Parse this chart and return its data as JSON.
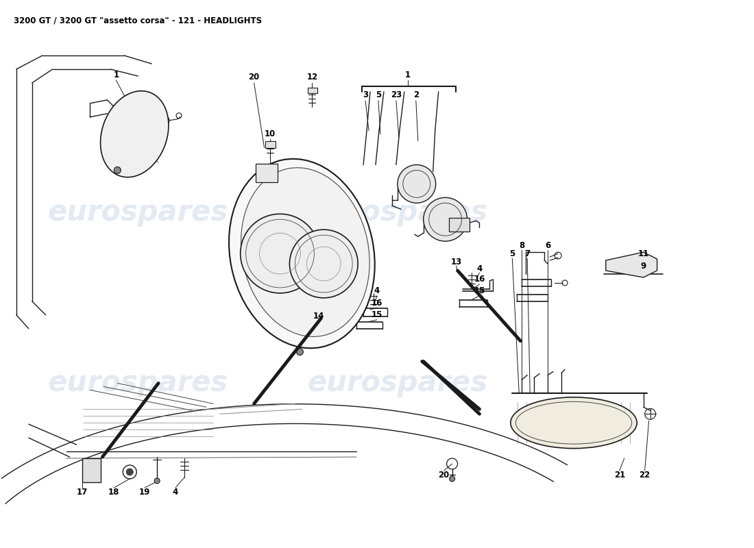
{
  "title": "3200 GT / 3200 GT \"assetto corsa\" - 121 - HEADLIGHTS",
  "title_fontsize": 8.5,
  "bg_color": "#ffffff",
  "watermark_text": "eurospares",
  "watermark_color": "#b8c8dc",
  "watermark_alpha": 0.38,
  "fig_w": 11.0,
  "fig_h": 8.0,
  "dpi": 100
}
